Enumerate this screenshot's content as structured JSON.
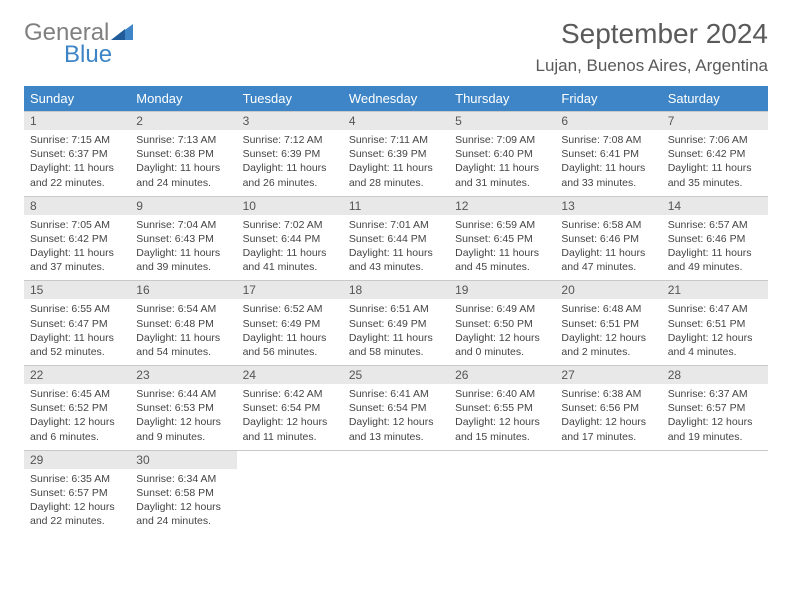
{
  "logo": {
    "text1": "General",
    "text2": "Blue"
  },
  "title": "September 2024",
  "location": "Lujan, Buenos Aires, Argentina",
  "colors": {
    "header_bg": "#3d85c6",
    "header_text": "#ffffff",
    "daynum_bg": "#e8e8e8",
    "row_divider": "#3d85c6",
    "cell_border": "#c8c8c8",
    "body_text": "#444444",
    "title_text": "#5a5a5a",
    "logo_gray": "#808080",
    "logo_blue": "#3d85c6",
    "page_bg": "#ffffff"
  },
  "columns": [
    "Sunday",
    "Monday",
    "Tuesday",
    "Wednesday",
    "Thursday",
    "Friday",
    "Saturday"
  ],
  "days": [
    {
      "n": "1",
      "sunrise": "7:15 AM",
      "sunset": "6:37 PM",
      "day_h": "11",
      "day_m": "22"
    },
    {
      "n": "2",
      "sunrise": "7:13 AM",
      "sunset": "6:38 PM",
      "day_h": "11",
      "day_m": "24"
    },
    {
      "n": "3",
      "sunrise": "7:12 AM",
      "sunset": "6:39 PM",
      "day_h": "11",
      "day_m": "26"
    },
    {
      "n": "4",
      "sunrise": "7:11 AM",
      "sunset": "6:39 PM",
      "day_h": "11",
      "day_m": "28"
    },
    {
      "n": "5",
      "sunrise": "7:09 AM",
      "sunset": "6:40 PM",
      "day_h": "11",
      "day_m": "31"
    },
    {
      "n": "6",
      "sunrise": "7:08 AM",
      "sunset": "6:41 PM",
      "day_h": "11",
      "day_m": "33"
    },
    {
      "n": "7",
      "sunrise": "7:06 AM",
      "sunset": "6:42 PM",
      "day_h": "11",
      "day_m": "35"
    },
    {
      "n": "8",
      "sunrise": "7:05 AM",
      "sunset": "6:42 PM",
      "day_h": "11",
      "day_m": "37"
    },
    {
      "n": "9",
      "sunrise": "7:04 AM",
      "sunset": "6:43 PM",
      "day_h": "11",
      "day_m": "39"
    },
    {
      "n": "10",
      "sunrise": "7:02 AM",
      "sunset": "6:44 PM",
      "day_h": "11",
      "day_m": "41"
    },
    {
      "n": "11",
      "sunrise": "7:01 AM",
      "sunset": "6:44 PM",
      "day_h": "11",
      "day_m": "43"
    },
    {
      "n": "12",
      "sunrise": "6:59 AM",
      "sunset": "6:45 PM",
      "day_h": "11",
      "day_m": "45"
    },
    {
      "n": "13",
      "sunrise": "6:58 AM",
      "sunset": "6:46 PM",
      "day_h": "11",
      "day_m": "47"
    },
    {
      "n": "14",
      "sunrise": "6:57 AM",
      "sunset": "6:46 PM",
      "day_h": "11",
      "day_m": "49"
    },
    {
      "n": "15",
      "sunrise": "6:55 AM",
      "sunset": "6:47 PM",
      "day_h": "11",
      "day_m": "52"
    },
    {
      "n": "16",
      "sunrise": "6:54 AM",
      "sunset": "6:48 PM",
      "day_h": "11",
      "day_m": "54"
    },
    {
      "n": "17",
      "sunrise": "6:52 AM",
      "sunset": "6:49 PM",
      "day_h": "11",
      "day_m": "56"
    },
    {
      "n": "18",
      "sunrise": "6:51 AM",
      "sunset": "6:49 PM",
      "day_h": "11",
      "day_m": "58"
    },
    {
      "n": "19",
      "sunrise": "6:49 AM",
      "sunset": "6:50 PM",
      "day_h": "12",
      "day_m": "0"
    },
    {
      "n": "20",
      "sunrise": "6:48 AM",
      "sunset": "6:51 PM",
      "day_h": "12",
      "day_m": "2"
    },
    {
      "n": "21",
      "sunrise": "6:47 AM",
      "sunset": "6:51 PM",
      "day_h": "12",
      "day_m": "4"
    },
    {
      "n": "22",
      "sunrise": "6:45 AM",
      "sunset": "6:52 PM",
      "day_h": "12",
      "day_m": "6"
    },
    {
      "n": "23",
      "sunrise": "6:44 AM",
      "sunset": "6:53 PM",
      "day_h": "12",
      "day_m": "9"
    },
    {
      "n": "24",
      "sunrise": "6:42 AM",
      "sunset": "6:54 PM",
      "day_h": "12",
      "day_m": "11"
    },
    {
      "n": "25",
      "sunrise": "6:41 AM",
      "sunset": "6:54 PM",
      "day_h": "12",
      "day_m": "13"
    },
    {
      "n": "26",
      "sunrise": "6:40 AM",
      "sunset": "6:55 PM",
      "day_h": "12",
      "day_m": "15"
    },
    {
      "n": "27",
      "sunrise": "6:38 AM",
      "sunset": "6:56 PM",
      "day_h": "12",
      "day_m": "17"
    },
    {
      "n": "28",
      "sunrise": "6:37 AM",
      "sunset": "6:57 PM",
      "day_h": "12",
      "day_m": "19"
    },
    {
      "n": "29",
      "sunrise": "6:35 AM",
      "sunset": "6:57 PM",
      "day_h": "12",
      "day_m": "22"
    },
    {
      "n": "30",
      "sunrise": "6:34 AM",
      "sunset": "6:58 PM",
      "day_h": "12",
      "day_m": "24"
    }
  ],
  "labels": {
    "sunrise": "Sunrise: ",
    "sunset": "Sunset: ",
    "daylight_prefix": "Daylight: ",
    "hours_word": " hours",
    "and_word": "and ",
    "minutes_word": " minutes."
  },
  "layout": {
    "weeks": 5,
    "cols": 7,
    "start_offset": 0,
    "total_days": 30
  }
}
